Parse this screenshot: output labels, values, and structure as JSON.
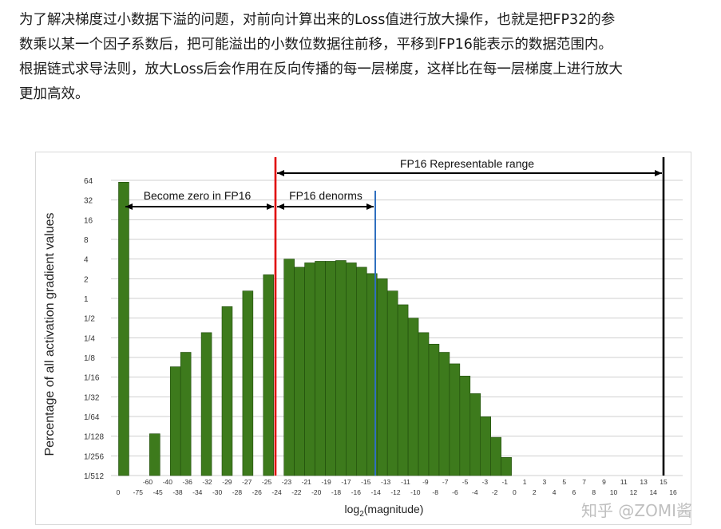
{
  "article": {
    "lines": [
      "为了解决梯度过小数据下溢的问题，对前向计算出来的Loss值进行放大操作，也就是把FP32的参",
      "数乘以某一个因子系数后，把可能溢出的小数位数据往前移，平移到FP16能表示的数据范围内。",
      "根据链式求导法则，放大Loss后会作用在反向传播的每一层梯度，这样比在每一层梯度上进行放大",
      "更加高效。"
    ]
  },
  "watermark": "知乎 @ZOMI酱",
  "colors": {
    "bar": "#3d7a1c",
    "bar_stroke": "#1f4a0b",
    "fp16_min_normal_line": "#e00000",
    "fp16_min_subnormal_line": "#2f6fbf",
    "fp16_max_line": "#000000",
    "grid": "#cfcfcf"
  },
  "chart_data": {
    "type": "bar",
    "title": "",
    "xlabel": "log₂(magnitude)",
    "xlabel_text": "log",
    "xlabel_sub": "2",
    "xlabel_tail": "(magnitude)",
    "ylabel": "Percentage of all activation gradient values",
    "y_scale": "log2",
    "y_ticks": [
      "1/512",
      "1/256",
      "1/128",
      "1/64",
      "1/32",
      "1/16",
      "1/8",
      "1/4",
      "1/2",
      "1",
      "2",
      "4",
      "8",
      "16",
      "32",
      "64"
    ],
    "x_ticks_top": [
      "-60",
      "-40",
      "-36",
      "-32",
      "-29",
      "-27",
      "-25",
      "-23",
      "-21",
      "-19",
      "-17",
      "-15",
      "-13",
      "-11",
      "-9",
      "-7",
      "-5",
      "-3",
      "-1",
      "1",
      "3",
      "5",
      "7",
      "9",
      "11",
      "13",
      "15"
    ],
    "x_ticks_bottom": [
      "0",
      "-75",
      "-45",
      "-38",
      "-34",
      "-30",
      "-28",
      "-26",
      "-24",
      "-22",
      "-20",
      "-18",
      "-16",
      "-14",
      "-12",
      "-10",
      "-8",
      "-6",
      "-4",
      "-2",
      "0",
      "2",
      "4",
      "6",
      "8",
      "10",
      "12",
      "14",
      "16"
    ],
    "bars": [
      {
        "x": "0",
        "value": 60
      },
      {
        "x": "-45",
        "value": 0.0085
      },
      {
        "x": "-43",
        "value": 0.09
      },
      {
        "x": "-42",
        "value": 0.15
      },
      {
        "x": "-40",
        "value": 0.3
      },
      {
        "x": "-38",
        "value": 0.75
      },
      {
        "x": "-36",
        "value": 1.3
      },
      {
        "x": "-34",
        "value": 2.3
      },
      {
        "x": "-32",
        "value": 4.0
      },
      {
        "x": "-31",
        "value": 3.0
      },
      {
        "x": "-30",
        "value": 3.5
      },
      {
        "x": "-29",
        "value": 3.7
      },
      {
        "x": "-28",
        "value": 3.7
      },
      {
        "x": "-27",
        "value": 3.8
      },
      {
        "x": "-26",
        "value": 3.5
      },
      {
        "x": "-25",
        "value": 3.0
      },
      {
        "x": "-24",
        "value": 2.4
      },
      {
        "x": "-23",
        "value": 2.0
      },
      {
        "x": "-22",
        "value": 1.3
      },
      {
        "x": "-21",
        "value": 0.8
      },
      {
        "x": "-20",
        "value": 0.5
      },
      {
        "x": "-19",
        "value": 0.3
      },
      {
        "x": "-18",
        "value": 0.2
      },
      {
        "x": "-17",
        "value": 0.15
      },
      {
        "x": "-16",
        "value": 0.1
      },
      {
        "x": "-15",
        "value": 0.065
      },
      {
        "x": "-14",
        "value": 0.035
      },
      {
        "x": "-13",
        "value": 0.0155
      },
      {
        "x": "-12",
        "value": 0.0075
      },
      {
        "x": "-11",
        "value": 0.0037
      }
    ],
    "annotations": [
      {
        "text": "FP16 Representable range",
        "from": "-24",
        "to": "15"
      },
      {
        "text": "Become zero in FP16",
        "from": "0",
        "to": "-24"
      },
      {
        "text": "FP16 denorms",
        "from": "-24",
        "to": "-14"
      }
    ],
    "vlines": [
      {
        "name": "fp16-min-normal",
        "x": "-24",
        "color": "red"
      },
      {
        "name": "fp16-min-subnormal",
        "x": "-14",
        "color": "blue"
      },
      {
        "name": "fp16-max",
        "x": "15",
        "color": "black"
      }
    ],
    "grid": true
  }
}
